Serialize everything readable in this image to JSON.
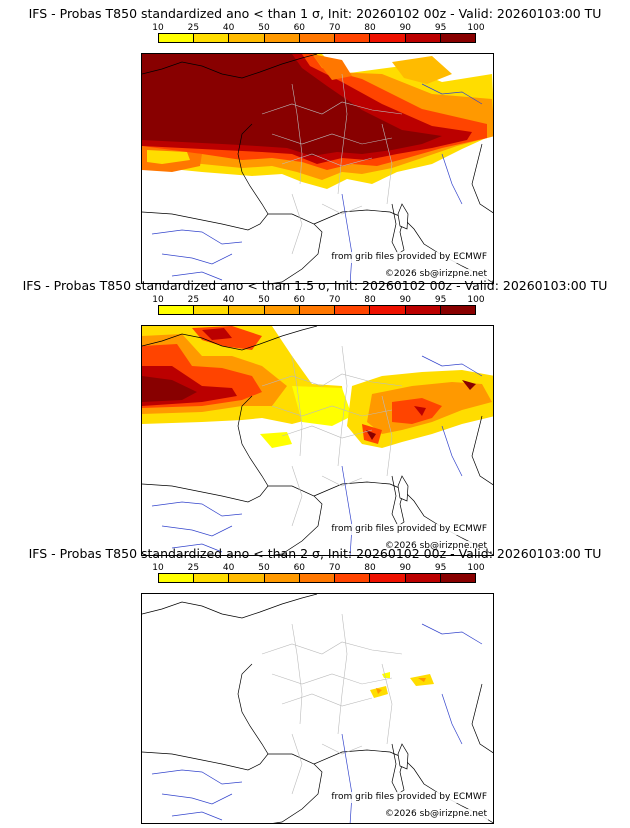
{
  "legend": {
    "ticks": [
      "10",
      "25",
      "40",
      "50",
      "60",
      "70",
      "80",
      "90",
      "95",
      "100"
    ],
    "colors": [
      "#ffff00",
      "#ffdd00",
      "#ffbb00",
      "#ff9900",
      "#ff7700",
      "#ff4400",
      "#ee1100",
      "#bb0000",
      "#880000"
    ]
  },
  "panels": [
    {
      "title": "IFS - Probas T850  standardized ano < than 1 σ, Init: 20260102 00z - Valid: 20260103:00 TU",
      "source": "from grib files provided by ECMWF",
      "copyright": "©2026 sb@irizpne.net"
    },
    {
      "title": "IFS - Probas T850  standardized ano < than 1.5 σ, Init: 20260102 00z - Valid: 20260103:00 TU",
      "source": "from grib files provided by ECMWF",
      "copyright": "©2026 sb@irizpne.net"
    },
    {
      "title": "IFS - Probas T850  standardized ano < than 2 σ, Init: 20260102 00z - Valid: 20260103:00 TU",
      "source": "from grib files provided by ECMWF",
      "copyright": "©2026 sb@irizpne.net"
    }
  ]
}
